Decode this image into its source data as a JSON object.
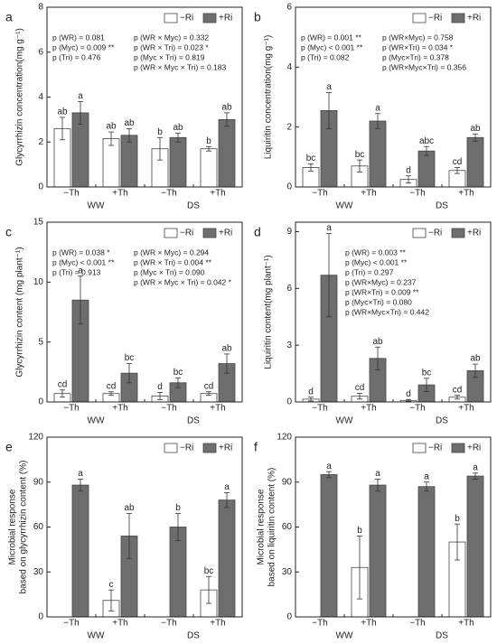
{
  "chart_data": [
    {
      "type": "bar",
      "panel_label": "a",
      "ylabel": "Glycyrrhizin concentration(mg g⁻¹)",
      "categories": [
        "−Th",
        "+Th",
        "−Th",
        "+Th"
      ],
      "groups": [
        "WW",
        "DS"
      ],
      "ylim": [
        0,
        8
      ],
      "yticks": [
        0,
        2,
        4,
        6,
        8
      ],
      "series": [
        {
          "name": "−Ri",
          "color": "#ffffff",
          "values": [
            2.6,
            2.15,
            1.7,
            1.7
          ],
          "errors": [
            0.5,
            0.3,
            0.5,
            0.1
          ],
          "letters": [
            "ab",
            "ab",
            "b",
            "b"
          ]
        },
        {
          "name": "+Ri",
          "color": "#6e6e6e",
          "values": [
            3.3,
            2.3,
            2.2,
            3.0
          ],
          "errors": [
            0.5,
            0.3,
            0.2,
            0.3
          ],
          "letters": [
            "a",
            "ab",
            "ab",
            "ab"
          ]
        }
      ],
      "annotations": [
        [
          "p (WR) = 0.081",
          "p (Myc) = 0.009 **",
          "p (Tri) = 0.476"
        ],
        [
          "p (WR × Myc) = 0.332",
          "p (WR × Tri) = 0.023 *",
          "p (Myc × Tri) = 0.819",
          "p (WR × Myc × Tri) = 0.183"
        ]
      ]
    },
    {
      "type": "bar",
      "panel_label": "b",
      "ylabel": "Liquiritin concentration(mg g⁻¹)",
      "categories": [
        "−Th",
        "+Th",
        "−Th",
        "+Th"
      ],
      "groups": [
        "WW",
        "DS"
      ],
      "ylim": [
        0,
        6
      ],
      "yticks": [
        0,
        2,
        4,
        6
      ],
      "series": [
        {
          "name": "−Ri",
          "color": "#ffffff",
          "values": [
            0.65,
            0.7,
            0.25,
            0.55
          ],
          "errors": [
            0.12,
            0.2,
            0.12,
            0.1
          ],
          "letters": [
            "bc",
            "bc",
            "d",
            "cd"
          ]
        },
        {
          "name": "+Ri",
          "color": "#6e6e6e",
          "values": [
            2.55,
            2.2,
            1.2,
            1.65
          ],
          "errors": [
            0.6,
            0.25,
            0.15,
            0.12
          ],
          "letters": [
            "a",
            "a",
            "abc",
            "ab"
          ]
        }
      ],
      "annotations": [
        [
          "p (WR) = 0.001 **",
          "p (Myc) < 0.001 **",
          "p (Tri) = 0.082"
        ],
        [
          "p (WR×Myc) = 0.758",
          "p (WR×Tri) = 0.034 *",
          "p (Myc×Tri) = 0.378",
          "p (WR×Myc×Tri) = 0.356"
        ]
      ]
    },
    {
      "type": "bar",
      "panel_label": "c",
      "ylabel": "Glycyrrhizin content (mg plant⁻¹)",
      "categories": [
        "−Th",
        "+Th",
        "−Th",
        "+Th"
      ],
      "groups": [
        "WW",
        "DS"
      ],
      "ylim": [
        0,
        15
      ],
      "yticks": [
        0,
        5,
        10,
        15
      ],
      "series": [
        {
          "name": "−Ri",
          "color": "#ffffff",
          "values": [
            0.7,
            0.7,
            0.5,
            0.7
          ],
          "errors": [
            0.3,
            0.15,
            0.3,
            0.15
          ],
          "letters": [
            "cd",
            "cd",
            "d",
            "cd"
          ]
        },
        {
          "name": "+Ri",
          "color": "#6e6e6e",
          "values": [
            8.5,
            2.4,
            1.6,
            3.2
          ],
          "errors": [
            2.0,
            0.8,
            0.4,
            0.8
          ],
          "letters": [
            "a",
            "bc",
            "bc",
            "ab"
          ]
        }
      ],
      "annotations": [
        [
          "p (WR) = 0.038 *",
          "p (Myc) < 0.001 **",
          "p (Tri) = 0.913"
        ],
        [
          "p (WR × Myc) = 0.294",
          "p (WR × Tri) = 0.004 **",
          "p (Myc × Tri) = 0.090",
          "p (WR × Myc × Tri) = 0.042 *"
        ]
      ]
    },
    {
      "type": "bar",
      "panel_label": "d",
      "ylabel": "Liquiritin content(mg plant⁻¹)",
      "categories": [
        "−Th",
        "+Th",
        "−Th",
        "+Th"
      ],
      "groups": [
        "WW",
        "DS"
      ],
      "ylim": [
        0,
        9.5
      ],
      "yticks": [
        0,
        3,
        6,
        9
      ],
      "series": [
        {
          "name": "−Ri",
          "color": "#ffffff",
          "values": [
            0.15,
            0.3,
            0.08,
            0.25
          ],
          "errors": [
            0.1,
            0.15,
            0.05,
            0.1
          ],
          "letters": [
            "d",
            "cd",
            "d",
            "cd"
          ]
        },
        {
          "name": "+Ri",
          "color": "#6e6e6e",
          "values": [
            6.7,
            2.3,
            0.9,
            1.65
          ],
          "errors": [
            2.2,
            0.6,
            0.35,
            0.35
          ],
          "letters": [
            "a",
            "ab",
            "bc",
            "ab"
          ]
        }
      ],
      "annotations": [
        [
          "p (WR) = 0.003 **",
          "p (Myc) < 0.001 **",
          "p (Tri) = 0.297",
          "p (WR×Myc) = 0.237",
          "p (WR×Tri) = 0.009 **",
          "p (Myc×Tri) = 0.080",
          "p (WR×Myc×Tri) = 0.442"
        ]
      ]
    },
    {
      "type": "bar",
      "panel_label": "e",
      "ylabel": [
        "Microbial response",
        "based on glycyrrhizin content (%)"
      ],
      "categories": [
        "−Th",
        "+Th",
        "−Th",
        "+Th"
      ],
      "groups": [
        "WW",
        "DS"
      ],
      "ylim": [
        0,
        120
      ],
      "yticks": [
        0,
        30,
        60,
        90,
        120
      ],
      "series": [
        {
          "name": "−Ri",
          "color": "#ffffff",
          "values": [
            null,
            11,
            null,
            18
          ],
          "errors": [
            null,
            7,
            null,
            9
          ],
          "letters": [
            null,
            "c",
            null,
            "bc"
          ]
        },
        {
          "name": "+Ri",
          "color": "#6e6e6e",
          "values": [
            88,
            54,
            60,
            78
          ],
          "errors": [
            4,
            15,
            9,
            5
          ],
          "letters": [
            "a",
            "ab",
            "b",
            "a"
          ]
        }
      ],
      "annotations": []
    },
    {
      "type": "bar",
      "panel_label": "f",
      "ylabel": [
        "Microbial response",
        "based on liquiritin content (%)"
      ],
      "categories": [
        "−Th",
        "+Th",
        "−Th",
        "+Th"
      ],
      "groups": [
        "WW",
        "DS"
      ],
      "ylim": [
        0,
        120
      ],
      "yticks": [
        0,
        30,
        60,
        90,
        120
      ],
      "series": [
        {
          "name": "−Ri",
          "color": "#ffffff",
          "values": [
            null,
            33,
            null,
            50
          ],
          "errors": [
            null,
            21,
            null,
            12
          ],
          "letters": [
            null,
            "b",
            null,
            "b"
          ]
        },
        {
          "name": "+Ri",
          "color": "#6e6e6e",
          "values": [
            95,
            88,
            87,
            94
          ],
          "errors": [
            2,
            4,
            3,
            2
          ],
          "letters": [
            "a",
            "a",
            "a",
            "a"
          ]
        }
      ],
      "annotations": []
    }
  ]
}
